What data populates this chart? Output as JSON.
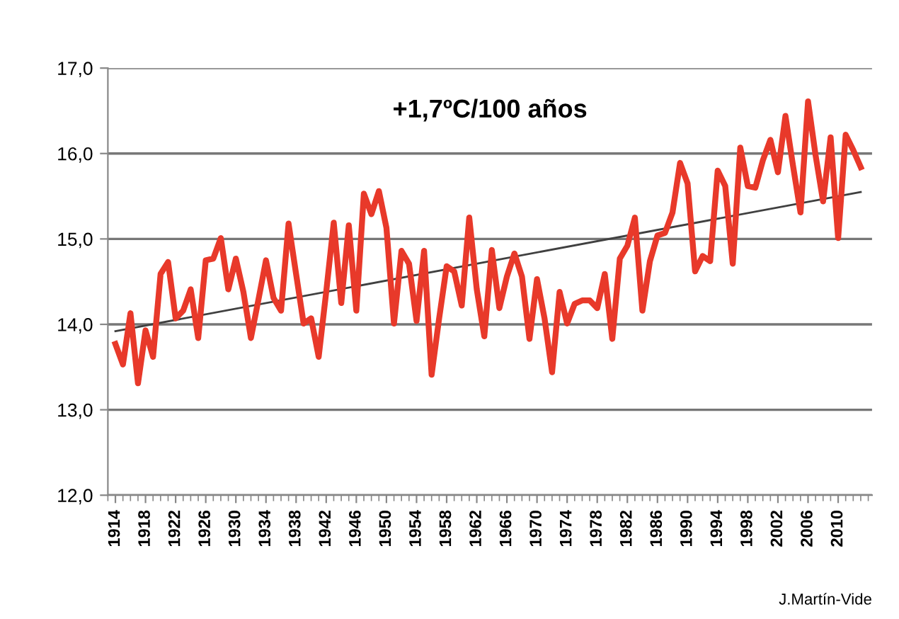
{
  "chart_data": {
    "type": "line",
    "x": [
      1914,
      1915,
      1916,
      1917,
      1918,
      1919,
      1920,
      1921,
      1922,
      1923,
      1924,
      1925,
      1926,
      1927,
      1928,
      1929,
      1930,
      1931,
      1932,
      1933,
      1934,
      1935,
      1936,
      1937,
      1938,
      1939,
      1940,
      1941,
      1942,
      1943,
      1944,
      1945,
      1946,
      1947,
      1948,
      1949,
      1950,
      1951,
      1952,
      1953,
      1954,
      1955,
      1956,
      1957,
      1958,
      1959,
      1960,
      1961,
      1962,
      1963,
      1964,
      1965,
      1966,
      1967,
      1968,
      1969,
      1970,
      1971,
      1972,
      1973,
      1974,
      1975,
      1976,
      1977,
      1978,
      1979,
      1980,
      1981,
      1982,
      1983,
      1984,
      1985,
      1986,
      1987,
      1988,
      1989,
      1990,
      1991,
      1992,
      1993,
      1994,
      1995,
      1996,
      1997,
      1998,
      1999,
      2000,
      2001,
      2002,
      2003,
      2004,
      2005,
      2006,
      2007,
      2008,
      2009,
      2010,
      2011,
      2012,
      2013
    ],
    "series": [
      {
        "color": "#e8392a",
        "values": [
          13.77,
          13.53,
          14.13,
          13.31,
          13.93,
          13.62,
          14.59,
          14.73,
          14.07,
          14.16,
          14.41,
          13.84,
          14.75,
          14.77,
          15.01,
          14.41,
          14.77,
          14.38,
          13.84,
          14.29,
          14.75,
          14.31,
          14.16,
          15.18,
          14.59,
          14.01,
          14.07,
          13.62,
          14.38,
          15.19,
          14.25,
          15.16,
          14.16,
          15.53,
          15.29,
          15.56,
          15.13,
          14.01,
          14.86,
          14.71,
          14.04,
          14.86,
          13.41,
          14.07,
          14.68,
          14.62,
          14.22,
          15.25,
          14.41,
          13.86,
          14.87,
          14.19,
          14.56,
          14.83,
          14.56,
          13.83,
          14.53,
          14.07,
          13.44,
          14.38,
          14.01,
          14.24,
          14.28,
          14.28,
          14.19,
          14.59,
          13.83,
          14.77,
          14.92,
          15.25,
          14.16,
          14.74,
          15.04,
          15.07,
          15.31,
          15.89,
          15.65,
          14.62,
          14.8,
          14.74,
          15.8,
          15.62,
          14.71,
          16.07,
          15.62,
          15.6,
          15.92,
          16.16,
          15.78,
          16.44,
          15.86,
          15.31,
          16.61,
          15.98,
          15.44,
          16.19,
          15.01,
          16.22,
          16.04,
          15.84
        ]
      },
      {
        "type": "line",
        "color": "#404040",
        "x": [
          1914,
          2013
        ],
        "values": [
          13.92,
          15.55
        ]
      }
    ],
    "xlim": [
      1913,
      2014.5
    ],
    "xticks": [
      1914,
      1918,
      1922,
      1926,
      1930,
      1934,
      1938,
      1942,
      1946,
      1950,
      1954,
      1958,
      1962,
      1966,
      1970,
      1974,
      1978,
      1982,
      1986,
      1990,
      1994,
      1998,
      2002,
      2006,
      2010
    ],
    "ylim": [
      12,
      17
    ],
    "yticks": [
      {
        "value": 12,
        "label": "12,0"
      },
      {
        "value": 13,
        "label": "13,0"
      },
      {
        "value": 14,
        "label": "14,0"
      },
      {
        "value": 15,
        "label": "15,0"
      },
      {
        "value": 16,
        "label": "16,0"
      },
      {
        "value": 17,
        "label": "17,0"
      }
    ],
    "grid": "y",
    "annotations": [
      "+1,7ºC/100 años",
      "J.Martín-Vide"
    ]
  }
}
